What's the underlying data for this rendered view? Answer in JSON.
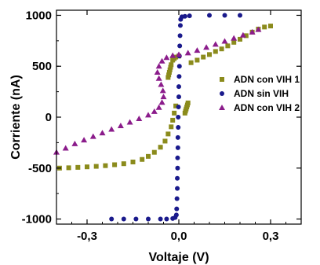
{
  "chart_data": {
    "type": "scatter",
    "title": "",
    "xlabel": "Voltaje (V)",
    "ylabel": "Corriente (nA)",
    "xlim": [
      -0.4,
      0.4
    ],
    "ylim": [
      -1050,
      1050
    ],
    "x_ticks": [
      {
        "value": -0.3,
        "label": "-0,3"
      },
      {
        "value": 0.0,
        "label": "0,0"
      },
      {
        "value": 0.3,
        "label": "0,3"
      }
    ],
    "y_ticks": [
      {
        "value": -1000,
        "label": "-1000"
      },
      {
        "value": -500,
        "label": "-500"
      },
      {
        "value": 0,
        "label": "0"
      },
      {
        "value": 500,
        "label": "500"
      },
      {
        "value": 1000,
        "label": "1000"
      }
    ],
    "grid": false,
    "legend_position": "right",
    "series": [
      {
        "name": "ADN con VIH 1",
        "color": "#8b8b1c",
        "marker": "square",
        "points": [
          [
            -0.39,
            -500
          ],
          [
            -0.36,
            -497
          ],
          [
            -0.33,
            -493
          ],
          [
            -0.3,
            -488
          ],
          [
            -0.27,
            -483
          ],
          [
            -0.24,
            -476
          ],
          [
            -0.21,
            -467
          ],
          [
            -0.18,
            -457
          ],
          [
            -0.15,
            -440
          ],
          [
            -0.12,
            -415
          ],
          [
            -0.1,
            -385
          ],
          [
            -0.08,
            -345
          ],
          [
            -0.06,
            -295
          ],
          [
            -0.045,
            -235
          ],
          [
            -0.035,
            -165
          ],
          [
            -0.025,
            -95
          ],
          [
            -0.02,
            -30
          ],
          [
            -0.015,
            40
          ],
          [
            -0.01,
            110
          ],
          [
            0.02,
            40
          ],
          [
            0.022,
            60
          ],
          [
            0.024,
            80
          ],
          [
            0.026,
            100
          ],
          [
            0.028,
            120
          ],
          [
            0.03,
            140
          ],
          [
            -0.035,
            390
          ],
          [
            -0.033,
            415
          ],
          [
            -0.031,
            440
          ],
          [
            -0.029,
            465
          ],
          [
            -0.027,
            490
          ],
          [
            -0.025,
            515
          ],
          [
            -0.02,
            560
          ],
          [
            -0.015,
            575
          ],
          [
            -0.01,
            590
          ],
          [
            0.0,
            600
          ],
          [
            0.04,
            535
          ],
          [
            0.06,
            560
          ],
          [
            0.08,
            590
          ],
          [
            0.1,
            615
          ],
          [
            0.12,
            645
          ],
          [
            0.14,
            670
          ],
          [
            0.16,
            700
          ],
          [
            0.18,
            735
          ],
          [
            0.2,
            765
          ],
          [
            0.22,
            800
          ],
          [
            0.24,
            835
          ],
          [
            0.26,
            865
          ],
          [
            0.28,
            885
          ],
          [
            0.3,
            895
          ]
        ]
      },
      {
        "name": "ADN sin VIH",
        "color": "#1a1a8c",
        "marker": "circle",
        "points": [
          [
            -0.22,
            -1000
          ],
          [
            -0.18,
            -1000
          ],
          [
            -0.14,
            -1000
          ],
          [
            -0.1,
            -1000
          ],
          [
            -0.06,
            -1000
          ],
          [
            -0.04,
            -1000
          ],
          [
            -0.02,
            -995
          ],
          [
            -0.012,
            -985
          ],
          [
            -0.008,
            -960
          ],
          [
            -0.007,
            -900
          ],
          [
            -0.006,
            -800
          ],
          [
            -0.005,
            -700
          ],
          [
            -0.005,
            -600
          ],
          [
            -0.004,
            -500
          ],
          [
            -0.004,
            -400
          ],
          [
            -0.003,
            -300
          ],
          [
            -0.003,
            -200
          ],
          [
            -0.002,
            -100
          ],
          [
            -0.002,
            0
          ],
          [
            -0.001,
            100
          ],
          [
            0.0,
            200
          ],
          [
            0.0,
            300
          ],
          [
            0.001,
            400
          ],
          [
            0.002,
            500
          ],
          [
            0.002,
            600
          ],
          [
            0.003,
            700
          ],
          [
            0.004,
            800
          ],
          [
            0.005,
            900
          ],
          [
            0.006,
            960
          ],
          [
            0.01,
            985
          ],
          [
            0.02,
            990
          ],
          [
            0.035,
            995
          ],
          [
            0.1,
            1000
          ],
          [
            0.15,
            1000
          ],
          [
            0.2,
            1000
          ]
        ]
      },
      {
        "name": "ADN con VIH 2",
        "color": "#8b1c8b",
        "marker": "triangle",
        "points": [
          [
            -0.4,
            -345
          ],
          [
            -0.37,
            -305
          ],
          [
            -0.34,
            -262
          ],
          [
            -0.31,
            -225
          ],
          [
            -0.28,
            -190
          ],
          [
            -0.25,
            -155
          ],
          [
            -0.22,
            -120
          ],
          [
            -0.19,
            -85
          ],
          [
            -0.16,
            -50
          ],
          [
            -0.13,
            -15
          ],
          [
            -0.1,
            20
          ],
          [
            -0.08,
            55
          ],
          [
            -0.065,
            95
          ],
          [
            -0.055,
            145
          ],
          [
            -0.05,
            200
          ],
          [
            -0.052,
            260
          ],
          [
            -0.058,
            320
          ],
          [
            -0.065,
            380
          ],
          [
            -0.07,
            440
          ],
          [
            -0.065,
            500
          ],
          [
            -0.055,
            550
          ],
          [
            -0.04,
            585
          ],
          [
            -0.02,
            605
          ],
          [
            0.0,
            615
          ],
          [
            0.03,
            630
          ],
          [
            0.06,
            655
          ],
          [
            0.09,
            685
          ],
          [
            0.12,
            715
          ],
          [
            0.15,
            745
          ],
          [
            0.18,
            775
          ],
          [
            0.21,
            805
          ],
          [
            0.24,
            835
          ],
          [
            0.26,
            860
          ]
        ]
      }
    ]
  }
}
